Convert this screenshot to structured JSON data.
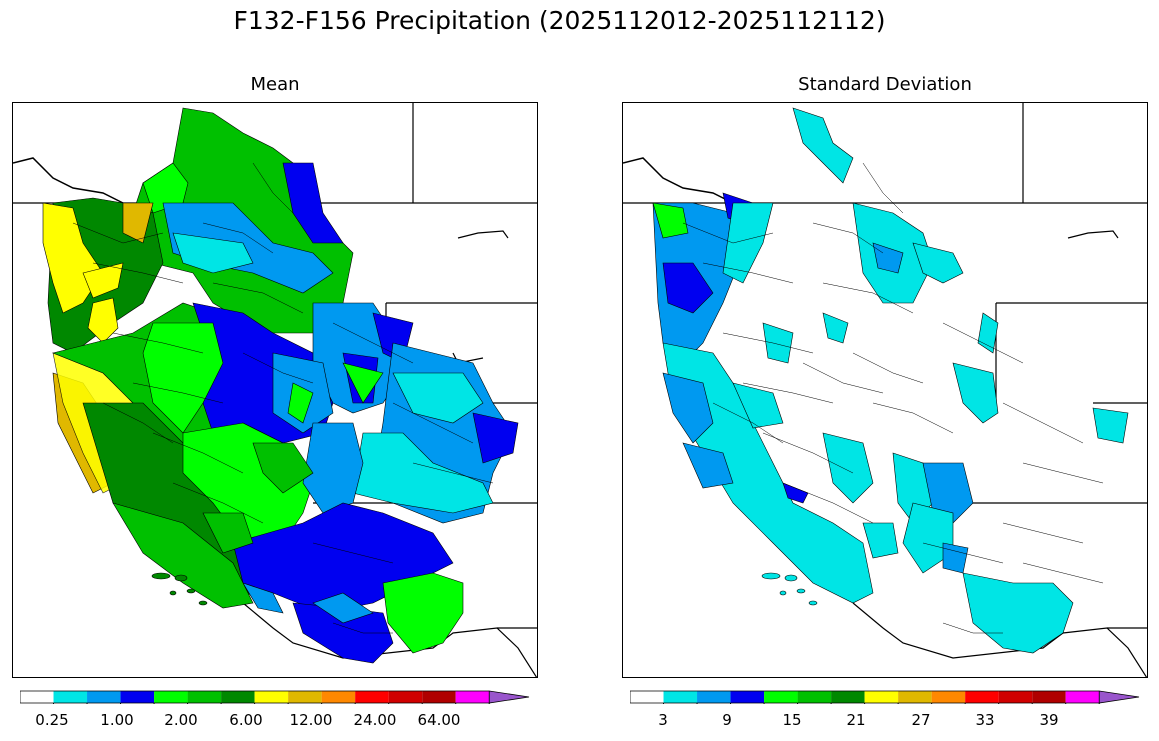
{
  "title": "F132-F156 Precipitation (2025112012-2025112112)",
  "panels": [
    {
      "title": "Mean"
    },
    {
      "title": "Standard Deviation"
    }
  ],
  "colorbar_colors": [
    "#ffffff",
    "#00e5e5",
    "#0099f0",
    "#0000f0",
    "#00ff00",
    "#00c000",
    "#008800",
    "#ffff00",
    "#e0b800",
    "#ff8800",
    "#ff0000",
    "#d00000",
    "#b00000",
    "#ff00ff",
    "#9955cc"
  ],
  "colorbars": [
    {
      "name": "mean",
      "tick_labels": [
        "0.25",
        "1.00",
        "2.00",
        "6.00",
        "12.00",
        "24.00",
        "64.00"
      ]
    },
    {
      "name": "std",
      "tick_labels": [
        "3",
        "9",
        "15",
        "21",
        "27",
        "33",
        "39"
      ]
    }
  ],
  "chart_data": [
    {
      "type": "other",
      "title": "Mean",
      "description_units": "precipitation",
      "legend_levels": [
        "0.25",
        "1.00",
        "2.00",
        "6.00",
        "12.00",
        "24.00",
        "64.00"
      ]
    },
    {
      "type": "other",
      "title": "Standard Deviation",
      "legend_levels": [
        "3",
        "9",
        "15",
        "21",
        "27",
        "33",
        "39"
      ]
    }
  ]
}
